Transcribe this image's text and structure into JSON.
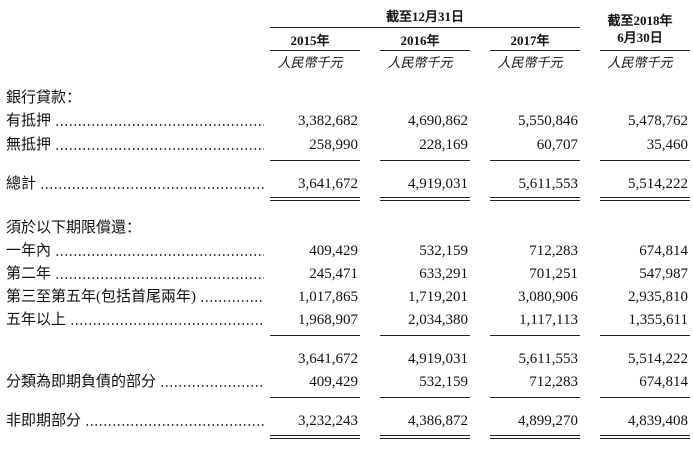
{
  "header": {
    "group": "截至12月31日",
    "columns": [
      {
        "title": "2015年",
        "unit": "人民幣千元"
      },
      {
        "title": "2016年",
        "unit": "人民幣千元"
      },
      {
        "title": "2017年",
        "unit": "人民幣千元"
      },
      {
        "title": "截至2018年\n6月30日",
        "unit": "人民幣千元"
      }
    ]
  },
  "table": {
    "rows": [
      {
        "label": "銀行貸款："
      },
      {
        "label": "有抵押",
        "values": [
          "3,382,682",
          "4,690,862",
          "5,550,846",
          "5,478,762"
        ]
      },
      {
        "label": "無抵押",
        "values": [
          "258,990",
          "228,169",
          "60,707",
          "35,460"
        ]
      },
      {
        "label": "總計",
        "values": [
          "3,641,672",
          "4,919,031",
          "5,611,553",
          "5,514,222"
        ]
      },
      {
        "label": "須於以下期限償還："
      },
      {
        "label": "一年內",
        "values": [
          "409,429",
          "532,159",
          "712,283",
          "674,814"
        ]
      },
      {
        "label": "第二年",
        "values": [
          "245,471",
          "633,291",
          "701,251",
          "547,987"
        ]
      },
      {
        "label": "第三至第五年(包括首尾兩年)",
        "values": [
          "1,017,865",
          "1,719,201",
          "3,080,906",
          "2,935,810"
        ]
      },
      {
        "label": "五年以上",
        "values": [
          "1,968,907",
          "2,034,380",
          "1,117,113",
          "1,355,611"
        ]
      },
      {
        "values": [
          "3,641,672",
          "4,919,031",
          "5,611,553",
          "5,514,222"
        ]
      },
      {
        "label": "分類為即期負債的部分",
        "values": [
          "409,429",
          "532,159",
          "712,283",
          "674,814"
        ]
      },
      {
        "label": "非即期部分",
        "values": [
          "3,232,243",
          "4,386,872",
          "4,899,270",
          "4,839,408"
        ]
      }
    ]
  }
}
